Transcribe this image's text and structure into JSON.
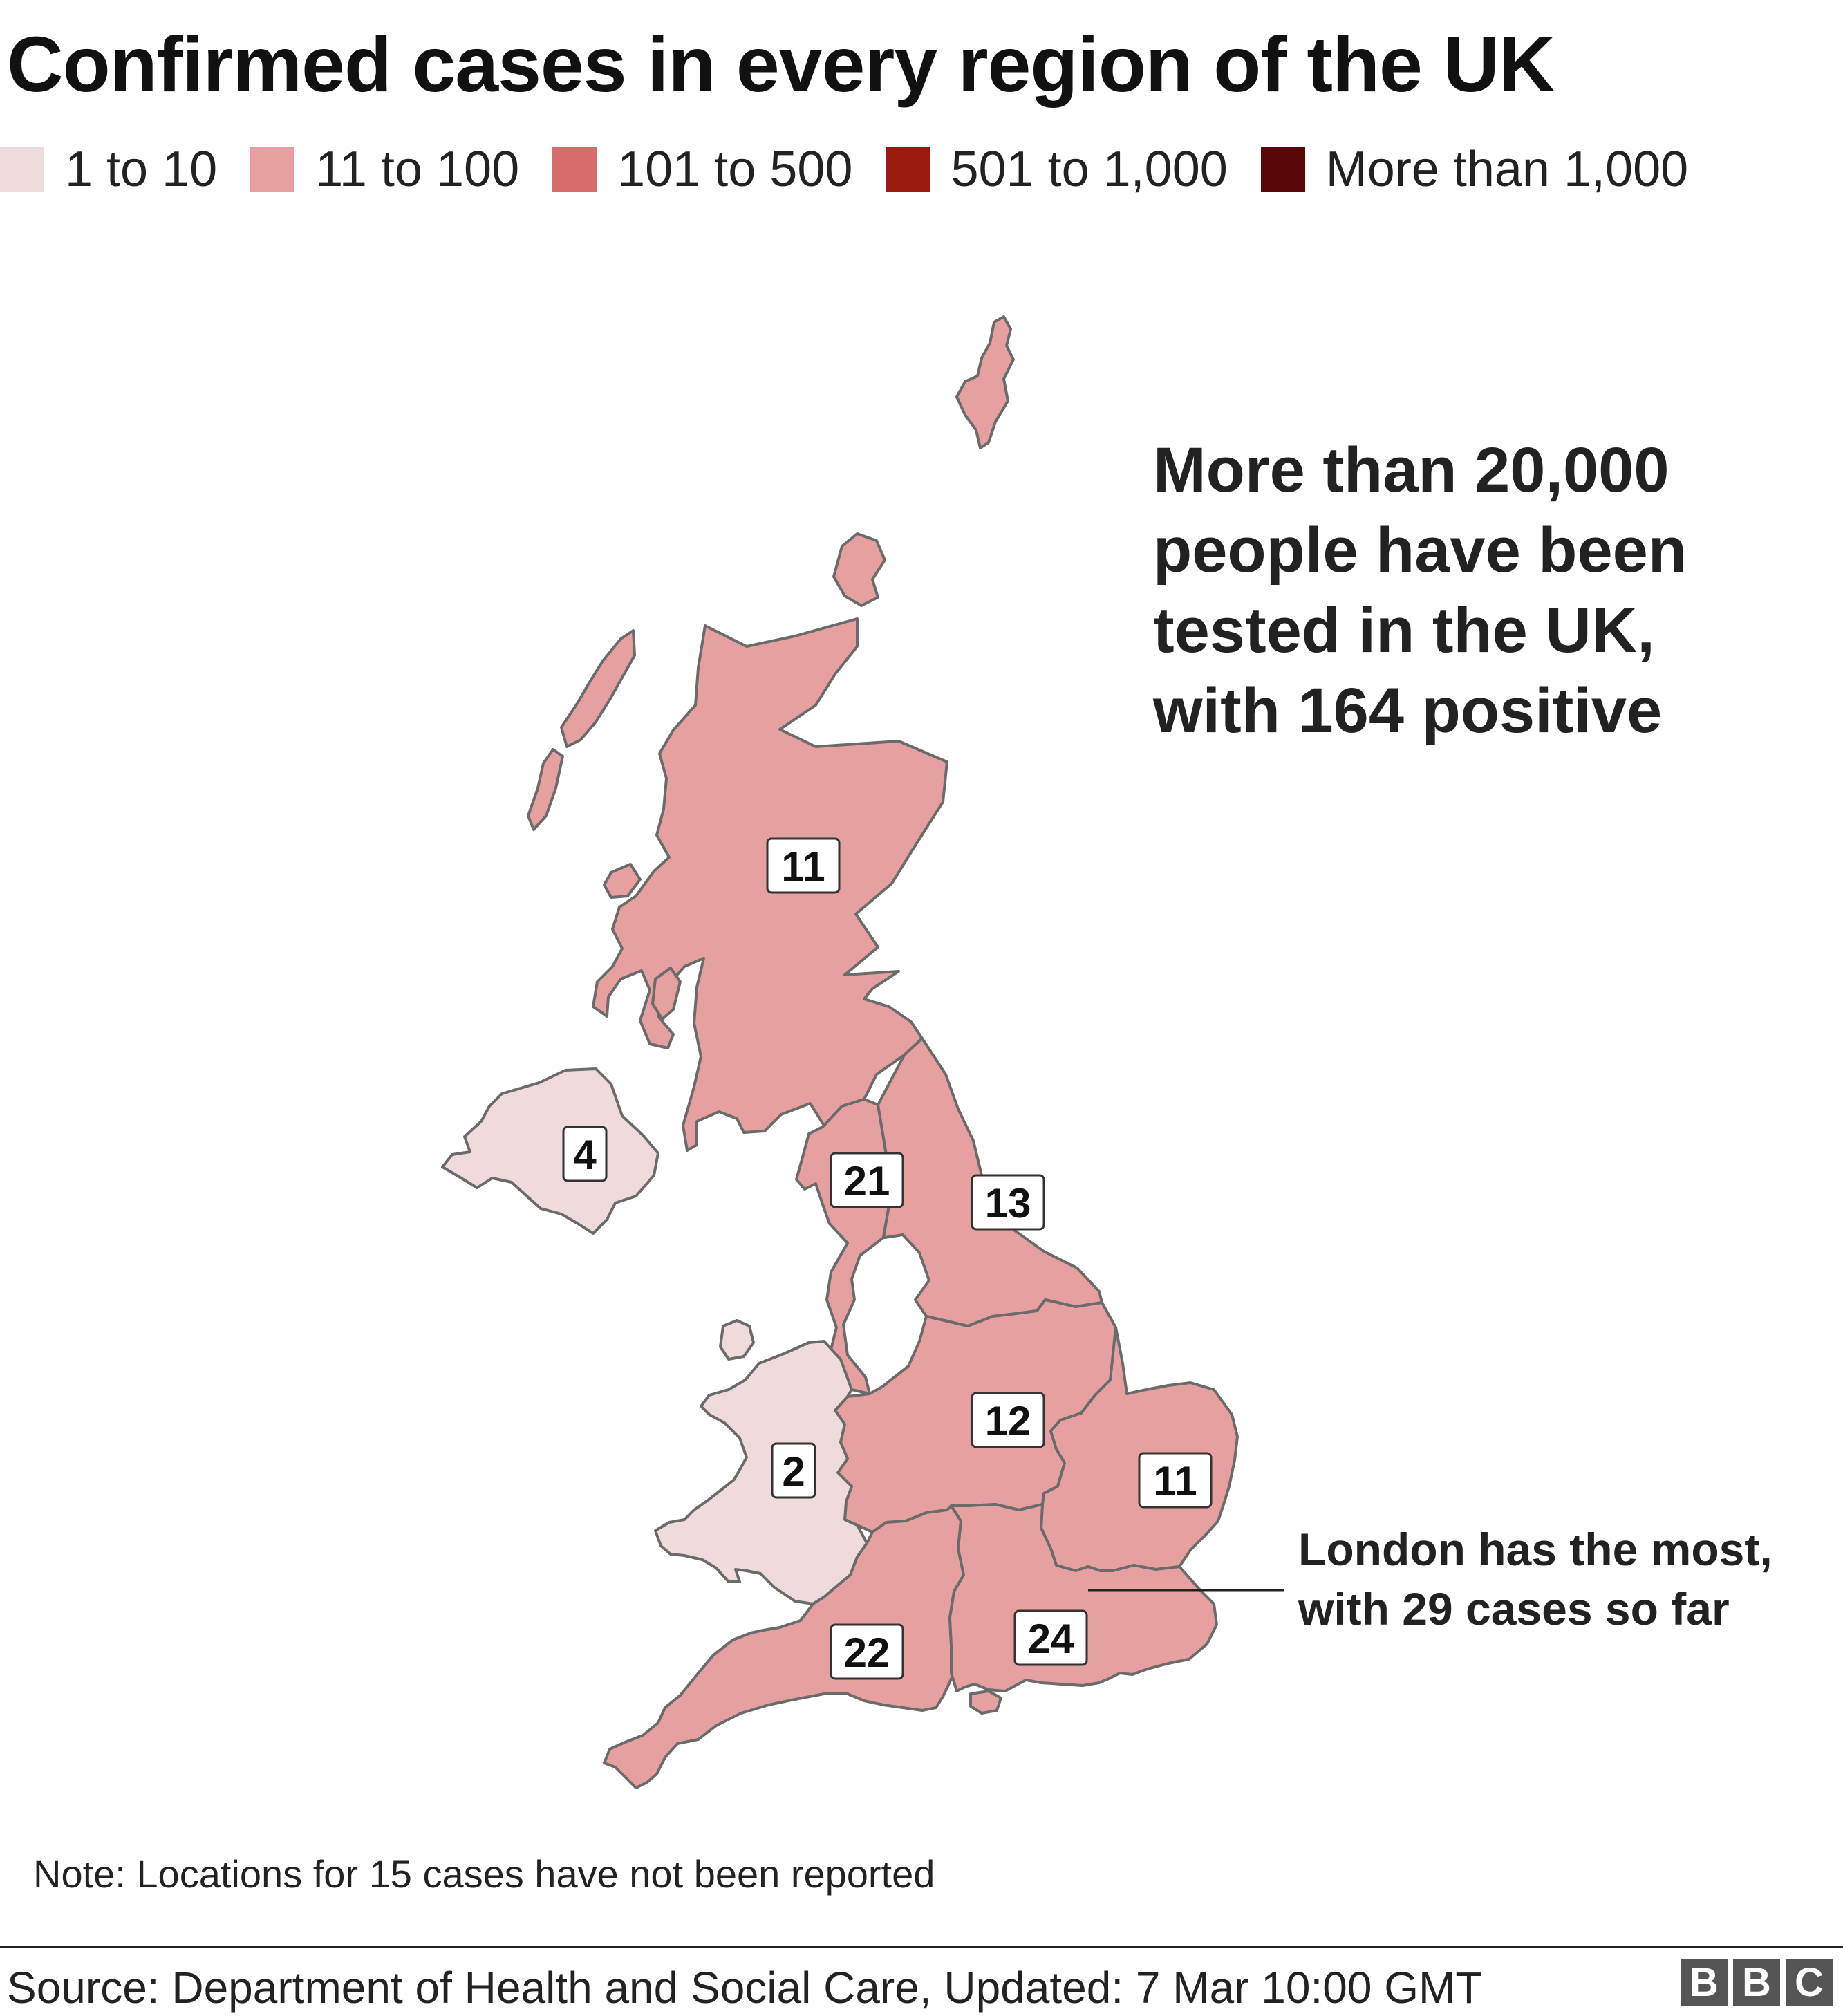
{
  "title": "Confirmed cases in every region of the UK",
  "legend": {
    "items": [
      {
        "label": "1 to 10",
        "color": "#efdbdb"
      },
      {
        "label": "11 to 100",
        "color": "#e6a0a0"
      },
      {
        "label": "101 to 500",
        "color": "#d66c6c"
      },
      {
        "label": "501 to 1,000",
        "color": "#9b1a0f"
      },
      {
        "label": "More than 1,000",
        "color": "#5a0708"
      }
    ]
  },
  "regions": [
    {
      "name": "Scotland",
      "cases": "11"
    },
    {
      "name": "Northern Ireland",
      "cases": "4"
    },
    {
      "name": "North West",
      "cases": "21"
    },
    {
      "name": "North East and Yorkshire",
      "cases": "13"
    },
    {
      "name": "Midlands",
      "cases": "12"
    },
    {
      "name": "Wales",
      "cases": "2"
    },
    {
      "name": "East of England",
      "cases": "11"
    },
    {
      "name": "South West",
      "cases": "22"
    },
    {
      "name": "South East",
      "cases": "24"
    }
  ],
  "annotations": {
    "main": [
      "More than 20,000",
      "people have been",
      "tested in the UK,",
      "with 164 positive"
    ],
    "london": [
      "London has the most,",
      "with 29 cases so far"
    ]
  },
  "note": "Note: Locations for 15 cases have not been reported",
  "source": "Source: Department of Health and Social Care, Updated: 7 Mar 10:00 GMT",
  "logo": [
    "B",
    "B",
    "C"
  ]
}
